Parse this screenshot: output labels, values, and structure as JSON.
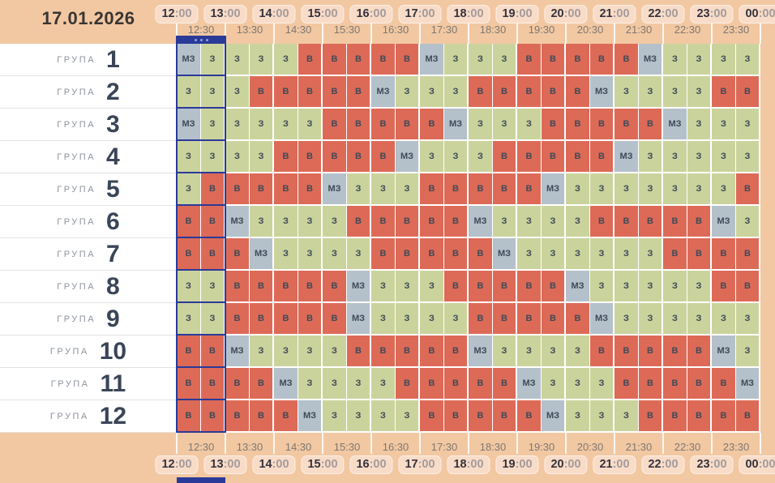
{
  "date": "17.01.2026",
  "group_label": "ГРУПА",
  "timeline": {
    "hours": [
      "12:00",
      "13:00",
      "14:00",
      "15:00",
      "16:00",
      "17:00",
      "18:00",
      "19:00",
      "20:00",
      "21:00",
      "22:00",
      "23:00",
      "00:00"
    ],
    "half_hours": [
      "12:30",
      "13:30",
      "14:30",
      "15:30",
      "16:30",
      "17:30",
      "18:30",
      "19:30",
      "20:30",
      "21:30",
      "22:30",
      "23:30"
    ]
  },
  "indicator": {
    "hour_span": "12:00",
    "dots": 3
  },
  "cell_states": {
    "З": "state_green",
    "В": "state_red",
    "МЗ": "state_gray"
  },
  "colors": {
    "background": "#f2c8a2",
    "surface": "#ffffff",
    "pill_bg": "#f8dcc8",
    "hour_text": "#35323c",
    "minutes_text": "#a39a9b",
    "half_hour_text": "#7d7772",
    "cell_text": "#3e4a57",
    "group_word": "#8d939c",
    "group_number": "#3a4557",
    "date_text": "#393533",
    "row_divider": "#e6e2de",
    "highlight": "#2a3a99",
    "highlight_dot": "#93a4e0",
    "state_green": "#cbd39c",
    "state_red": "#dd6a57",
    "state_gray": "#b4c1cb"
  },
  "groups": [
    {
      "number": "1",
      "cells": [
        "МЗ",
        "З",
        "З",
        "З",
        "З",
        "В",
        "В",
        "В",
        "В",
        "В",
        "МЗ",
        "З",
        "З",
        "З",
        "В",
        "В",
        "В",
        "В",
        "В",
        "МЗ",
        "З",
        "З",
        "З",
        "З"
      ]
    },
    {
      "number": "2",
      "cells": [
        "З",
        "З",
        "З",
        "В",
        "В",
        "В",
        "В",
        "В",
        "МЗ",
        "З",
        "З",
        "З",
        "В",
        "В",
        "В",
        "В",
        "В",
        "МЗ",
        "З",
        "З",
        "З",
        "З",
        "В",
        "В"
      ]
    },
    {
      "number": "3",
      "cells": [
        "МЗ",
        "З",
        "З",
        "З",
        "З",
        "З",
        "В",
        "В",
        "В",
        "В",
        "В",
        "МЗ",
        "З",
        "З",
        "З",
        "В",
        "В",
        "В",
        "В",
        "В",
        "МЗ",
        "З",
        "З",
        "З"
      ]
    },
    {
      "number": "4",
      "cells": [
        "З",
        "З",
        "З",
        "З",
        "В",
        "В",
        "В",
        "В",
        "В",
        "МЗ",
        "З",
        "З",
        "З",
        "В",
        "В",
        "В",
        "В",
        "В",
        "МЗ",
        "З",
        "З",
        "З",
        "З",
        "З"
      ]
    },
    {
      "number": "5",
      "cells": [
        "З",
        "В",
        "В",
        "В",
        "В",
        "В",
        "МЗ",
        "З",
        "З",
        "З",
        "В",
        "В",
        "В",
        "В",
        "В",
        "МЗ",
        "З",
        "З",
        "З",
        "З",
        "З",
        "З",
        "З",
        "В"
      ]
    },
    {
      "number": "6",
      "cells": [
        "В",
        "В",
        "МЗ",
        "З",
        "З",
        "З",
        "З",
        "В",
        "В",
        "В",
        "В",
        "В",
        "МЗ",
        "З",
        "З",
        "З",
        "З",
        "В",
        "В",
        "В",
        "В",
        "В",
        "МЗ",
        "З"
      ]
    },
    {
      "number": "7",
      "cells": [
        "В",
        "В",
        "В",
        "МЗ",
        "З",
        "З",
        "З",
        "З",
        "В",
        "В",
        "В",
        "В",
        "В",
        "МЗ",
        "З",
        "З",
        "З",
        "З",
        "З",
        "З",
        "В",
        "В",
        "В",
        "В"
      ]
    },
    {
      "number": "8",
      "cells": [
        "З",
        "З",
        "В",
        "В",
        "В",
        "В",
        "В",
        "МЗ",
        "З",
        "З",
        "З",
        "В",
        "В",
        "В",
        "В",
        "В",
        "МЗ",
        "З",
        "З",
        "З",
        "З",
        "З",
        "В",
        "В"
      ]
    },
    {
      "number": "9",
      "cells": [
        "З",
        "З",
        "В",
        "В",
        "В",
        "В",
        "В",
        "МЗ",
        "З",
        "З",
        "З",
        "З",
        "В",
        "В",
        "В",
        "В",
        "В",
        "МЗ",
        "З",
        "З",
        "З",
        "З",
        "З",
        "З"
      ]
    },
    {
      "number": "10",
      "cells": [
        "В",
        "В",
        "МЗ",
        "З",
        "З",
        "З",
        "З",
        "В",
        "В",
        "В",
        "В",
        "В",
        "МЗ",
        "З",
        "З",
        "З",
        "З",
        "В",
        "В",
        "В",
        "В",
        "В",
        "МЗ",
        "З"
      ]
    },
    {
      "number": "11",
      "cells": [
        "В",
        "В",
        "В",
        "В",
        "МЗ",
        "З",
        "З",
        "З",
        "З",
        "В",
        "В",
        "В",
        "В",
        "В",
        "МЗ",
        "З",
        "З",
        "З",
        "В",
        "В",
        "В",
        "В",
        "В",
        "МЗ"
      ]
    },
    {
      "number": "12",
      "cells": [
        "В",
        "В",
        "В",
        "В",
        "В",
        "МЗ",
        "З",
        "З",
        "З",
        "З",
        "В",
        "В",
        "В",
        "В",
        "В",
        "МЗ",
        "З",
        "З",
        "З",
        "В",
        "В",
        "В",
        "В",
        "В"
      ]
    }
  ]
}
